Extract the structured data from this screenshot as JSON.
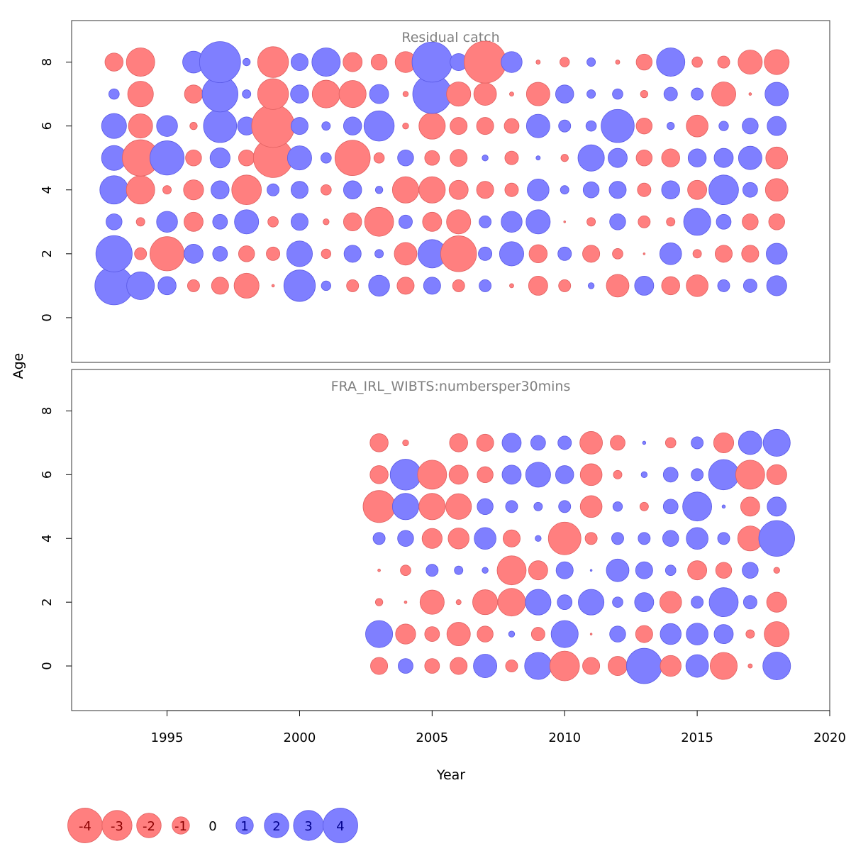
{
  "chart_data": {
    "type": "bubble-residuals",
    "ylabel": "Age",
    "xlabel": "Year",
    "xlim": [
      1991.4,
      2020.0
    ],
    "ylim": [
      -1.4,
      9.3
    ],
    "x_ticks": [
      1995,
      2000,
      2005,
      2010,
      2015,
      2020
    ],
    "y_ticks": [
      0,
      2,
      4,
      6,
      8
    ],
    "colors": {
      "negative": "#ff7f7f",
      "positive": "#7f7fff",
      "negative_text": "#8b0000",
      "positive_text": "#00008b"
    },
    "max_abs_value": 4,
    "panels": [
      {
        "title": "Residual catch",
        "years": [
          1993,
          1994,
          1995,
          1996,
          1997,
          1998,
          1999,
          2000,
          2001,
          2002,
          2003,
          2004,
          2005,
          2006,
          2007,
          2008,
          2009,
          2010,
          2011,
          2012,
          2013,
          2014,
          2015,
          2016,
          2017,
          2018
        ],
        "ages": [
          1,
          2,
          3,
          4,
          5,
          6,
          7,
          8
        ],
        "values": {
          "1": [
            4.0,
            2.1,
            0.9,
            -0.4,
            -0.8,
            -1.7,
            -0.02,
            2.7,
            0.25,
            -0.4,
            1.2,
            -0.8,
            0.8,
            -0.4,
            0.4,
            -0.05,
            -1.0,
            -0.4,
            0.1,
            -1.4,
            1.0,
            -0.9,
            -1.3,
            0.4,
            0.5,
            1.1
          ],
          "2": [
            3.6,
            -0.4,
            -3.2,
            1.0,
            0.6,
            -0.7,
            -0.5,
            1.8,
            -0.25,
            0.8,
            0.2,
            -1.4,
            2.2,
            -3.5,
            0.5,
            1.6,
            -0.9,
            0.5,
            -0.8,
            -0.3,
            -0.01,
            1.3,
            -0.2,
            -0.8,
            -0.8,
            1.2
          ],
          "3": [
            0.7,
            -0.2,
            1.2,
            -1.0,
            0.6,
            1.6,
            -0.3,
            0.8,
            -0.1,
            -0.9,
            -2.3,
            0.5,
            -1.0,
            -1.6,
            0.4,
            1.2,
            1.6,
            -0.01,
            -0.2,
            0.7,
            -0.4,
            -0.2,
            2.0,
            0.6,
            -0.7,
            -0.7
          ],
          "4": [
            2.2,
            -2.2,
            -0.2,
            -1.1,
            0.9,
            -2.4,
            0.4,
            0.8,
            -0.3,
            0.9,
            0.15,
            -1.9,
            -1.9,
            -1.0,
            -0.8,
            -0.5,
            1.3,
            0.2,
            0.7,
            0.8,
            -0.5,
            0.9,
            -1.0,
            2.4,
            0.6,
            -1.4
          ],
          "5": [
            1.7,
            -3.6,
            3.2,
            -0.7,
            1.1,
            -0.7,
            -4.2,
            1.6,
            0.3,
            -3.4,
            -0.3,
            0.7,
            -0.6,
            -0.8,
            0.1,
            -0.5,
            0.05,
            -0.15,
            1.9,
            1.0,
            -0.7,
            -0.9,
            0.9,
            1.0,
            1.5,
            -1.3
          ],
          "6": [
            1.7,
            -1.6,
            1.2,
            -0.15,
            3.0,
            0.9,
            -5.0,
            0.8,
            0.2,
            0.9,
            2.5,
            -0.1,
            -1.9,
            -0.8,
            -0.8,
            -0.6,
            1.5,
            0.4,
            0.3,
            3.0,
            -0.7,
            0.15,
            -1.3,
            0.25,
            0.7,
            1.0
          ],
          "7": [
            0.3,
            -1.8,
            0.0,
            -0.9,
            3.5,
            0.2,
            -2.6,
            0.9,
            -2.1,
            -2.0,
            1.0,
            -0.08,
            4.1,
            -1.6,
            -1.4,
            -0.05,
            -1.5,
            0.9,
            0.2,
            0.3,
            -0.15,
            0.5,
            0.4,
            -1.6,
            -0.02,
            1.5
          ],
          "8": [
            -0.9,
            -2.2,
            0.0,
            1.3,
            4.6,
            0.15,
            -2.6,
            0.8,
            2.2,
            -1.0,
            -0.7,
            -1.2,
            4.4,
            0.8,
            -4.8,
            1.2,
            -0.05,
            -0.25,
            0.2,
            -0.05,
            -0.7,
            2.2,
            -0.3,
            -0.4,
            -1.6,
            -1.7
          ]
        }
      },
      {
        "title": "FRA_IRL_WIBTS:numbersper30mins",
        "years": [
          2003,
          2004,
          2005,
          2006,
          2007,
          2008,
          2009,
          2010,
          2011,
          2012,
          2013,
          2014,
          2015,
          2016,
          2017,
          2018
        ],
        "ages": [
          0,
          1,
          2,
          3,
          4,
          5,
          6,
          7
        ],
        "values": {
          "0": [
            -0.8,
            0.6,
            -0.6,
            -0.8,
            1.5,
            -0.4,
            2.0,
            -2.4,
            -0.8,
            -1.0,
            3.4,
            -1.2,
            1.4,
            -2.0,
            -0.05,
            2.1
          ],
          "1": [
            2.0,
            -1.1,
            -0.6,
            -1.5,
            -0.7,
            0.1,
            -0.5,
            2.0,
            -0.01,
            0.7,
            -0.8,
            1.2,
            1.3,
            1.0,
            -0.2,
            -1.7
          ],
          "2": [
            -0.15,
            -0.02,
            -1.6,
            -0.07,
            -1.7,
            -2.1,
            1.8,
            0.6,
            1.8,
            0.3,
            1.0,
            -1.3,
            0.4,
            2.3,
            0.5,
            -1.1
          ],
          "3": [
            -0.02,
            -0.3,
            0.4,
            0.2,
            0.1,
            -2.3,
            -1.0,
            0.8,
            0.01,
            1.4,
            0.8,
            0.3,
            -1.0,
            -0.7,
            0.7,
            -0.1
          ],
          "4": [
            0.4,
            0.7,
            -1.1,
            -1.2,
            1.3,
            -0.8,
            0.1,
            -2.9,
            -0.4,
            0.4,
            0.4,
            0.7,
            1.3,
            0.4,
            -1.7,
            3.5
          ],
          "5": [
            -2.8,
            1.9,
            -1.9,
            -1.8,
            0.7,
            0.4,
            0.2,
            0.4,
            -1.3,
            0.25,
            -0.2,
            0.6,
            2.3,
            0.03,
            -1.0,
            1.0
          ],
          "6": [
            -0.9,
            2.6,
            -2.3,
            -1.0,
            -0.7,
            1.0,
            1.7,
            0.9,
            -1.3,
            -0.2,
            0.1,
            0.6,
            0.4,
            2.5,
            -2.3,
            -1.1
          ],
          "7": [
            -0.9,
            -0.1,
            0.0,
            -0.9,
            -0.8,
            1.0,
            0.6,
            0.5,
            -1.4,
            -0.6,
            0.03,
            -0.3,
            0.4,
            -1.1,
            1.5,
            2.0
          ]
        }
      }
    ],
    "legend": {
      "position": "bottom-left",
      "values": [
        -4,
        -3,
        -2,
        -1,
        0,
        1,
        2,
        3,
        4
      ],
      "labels": [
        "-4",
        "-3",
        "-2",
        "-1",
        "0",
        "1",
        "2",
        "3",
        "4"
      ]
    }
  }
}
